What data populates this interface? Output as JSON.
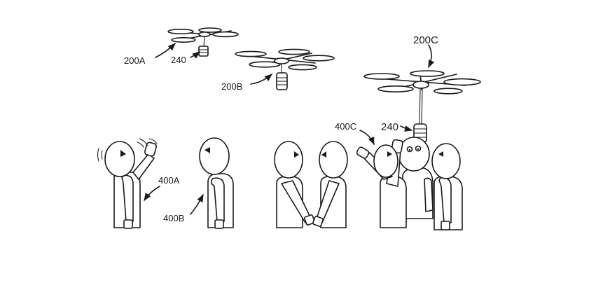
{
  "labels": {
    "drone_a": "200A",
    "drone_b": "200B",
    "drone_c": "200C",
    "payload_a": "240",
    "payload_c": "240",
    "person_a": "400A",
    "person_b": "400B",
    "person_c": "400C"
  }
}
